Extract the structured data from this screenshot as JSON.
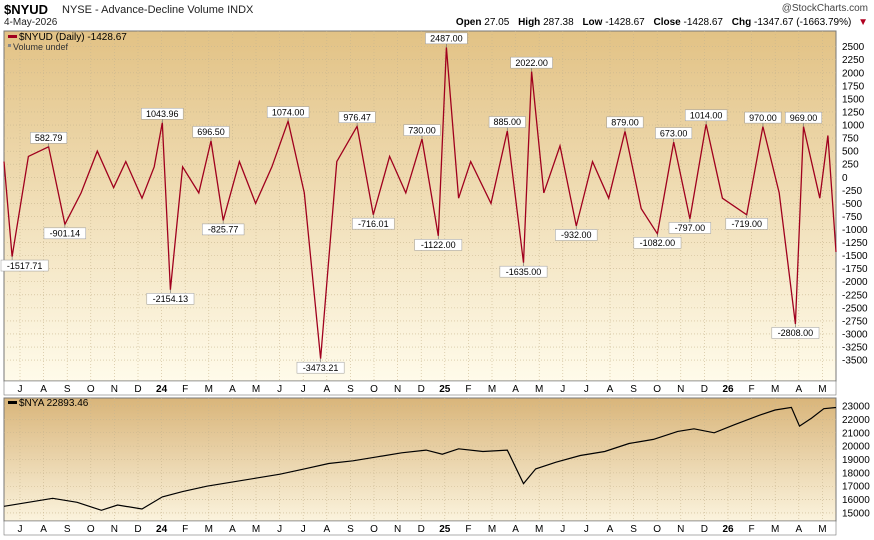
{
  "header": {
    "symbol": "$NYUD",
    "description": "NYSE - Advance-Decline Volume  INDX",
    "date": "4-May-2026",
    "brand": "@StockCharts.com",
    "open_label": "Open",
    "open_value": "27.05",
    "high_label": "High",
    "high_value": "287.38",
    "low_label": "Low",
    "low_value": "-1428.67",
    "close_label": "Close",
    "close_value": "-1428.67",
    "chg_label": "Chg",
    "chg_value": "-1347.67 (-1663.79%)",
    "chg_icon": "down-triangle-icon"
  },
  "colors": {
    "primary_line": "#a0001e",
    "secondary_line": "#000000"
  },
  "chart_data": [
    {
      "type": "line",
      "legend": "$NYUD (Daily) -1428.67",
      "sublegend": "Volume undef",
      "ylim": [
        -3900,
        2800
      ],
      "yticks": [
        2500,
        2250,
        2000,
        1750,
        1500,
        1250,
        1000,
        750,
        500,
        250,
        0,
        -250,
        -500,
        -750,
        -1000,
        -1250,
        -1500,
        -1750,
        -2000,
        -2250,
        -2500,
        -2750,
        -3000,
        -3250,
        -3500
      ],
      "x_ticks": [
        "J",
        "A",
        "S",
        "O",
        "N",
        "D",
        "24",
        "F",
        "M",
        "A",
        "M",
        "J",
        "J",
        "A",
        "S",
        "O",
        "N",
        "D",
        "25",
        "F",
        "M",
        "A",
        "M",
        "J",
        "J",
        "A",
        "S",
        "O",
        "N",
        "D",
        "26",
        "F",
        "M",
        "A",
        "M"
      ],
      "points": [
        [
          0,
          300
        ],
        [
          2,
          -1517.71
        ],
        [
          6,
          400
        ],
        [
          11,
          582.79
        ],
        [
          15,
          -901.14
        ],
        [
          19,
          -300
        ],
        [
          23,
          500
        ],
        [
          27,
          -200
        ],
        [
          30,
          300
        ],
        [
          34,
          -400
        ],
        [
          37,
          200
        ],
        [
          39,
          1043.96
        ],
        [
          41,
          -2154.13
        ],
        [
          44,
          200
        ],
        [
          48,
          -300
        ],
        [
          51,
          696.5
        ],
        [
          54,
          -825.77
        ],
        [
          58,
          300
        ],
        [
          62,
          -500
        ],
        [
          66,
          200
        ],
        [
          70,
          1074.0
        ],
        [
          74,
          -300
        ],
        [
          78,
          -3473.21
        ],
        [
          82,
          300
        ],
        [
          87,
          976.47
        ],
        [
          91,
          -716.01
        ],
        [
          95,
          400
        ],
        [
          99,
          -300
        ],
        [
          103,
          730.0
        ],
        [
          107,
          -1122.0
        ],
        [
          109,
          2487.0
        ],
        [
          112,
          -400
        ],
        [
          115,
          300
        ],
        [
          120,
          -500
        ],
        [
          124,
          885.0
        ],
        [
          128,
          -1635.0
        ],
        [
          130,
          2022.0
        ],
        [
          133,
          -300
        ],
        [
          137,
          600
        ],
        [
          141,
          -932.0
        ],
        [
          145,
          300
        ],
        [
          149,
          -400
        ],
        [
          153,
          879.0
        ],
        [
          157,
          -600
        ],
        [
          161,
          -1082.0
        ],
        [
          165,
          673.0
        ],
        [
          169,
          -797.0
        ],
        [
          173,
          1014.0
        ],
        [
          177,
          -400
        ],
        [
          183,
          -719.0
        ],
        [
          187,
          970.0
        ],
        [
          191,
          -300
        ],
        [
          195,
          -2808.0
        ],
        [
          197,
          969.0
        ],
        [
          201,
          -400
        ],
        [
          203,
          800
        ],
        [
          205,
          -1428.67
        ]
      ],
      "annotations": [
        "-1517.71",
        "582.79",
        "-901.14",
        "1043.96",
        "-2154.13",
        "696.50",
        "-825.77",
        "1074.00",
        "-3473.21",
        "976.47",
        "-716.01",
        "730.00",
        "-1122.00",
        "2487.00",
        "885.00",
        "-1635.00",
        "2022.00",
        "-932.00",
        "879.00",
        "-1082.00",
        "673.00",
        "-797.00",
        "1014.00",
        "-719.00",
        "970.00",
        "969.00",
        "-2808.00"
      ]
    },
    {
      "type": "line",
      "legend": "$NYA 22893.46",
      "ylim": [
        14400,
        23600
      ],
      "yticks": [
        23000,
        22000,
        21000,
        20000,
        19000,
        18000,
        17000,
        16000,
        15000
      ],
      "x_ticks": [
        "J",
        "A",
        "S",
        "O",
        "N",
        "D",
        "24",
        "F",
        "M",
        "A",
        "M",
        "J",
        "J",
        "A",
        "S",
        "O",
        "N",
        "D",
        "25",
        "F",
        "M",
        "A",
        "M",
        "J",
        "J",
        "A",
        "S",
        "O",
        "N",
        "D",
        "26",
        "F",
        "M",
        "A",
        "M"
      ],
      "points": [
        [
          0,
          15500
        ],
        [
          6,
          15800
        ],
        [
          12,
          16100
        ],
        [
          18,
          15800
        ],
        [
          24,
          15200
        ],
        [
          28,
          15600
        ],
        [
          34,
          15300
        ],
        [
          39,
          16200
        ],
        [
          44,
          16600
        ],
        [
          50,
          17000
        ],
        [
          56,
          17300
        ],
        [
          62,
          17600
        ],
        [
          68,
          17900
        ],
        [
          74,
          18300
        ],
        [
          80,
          18700
        ],
        [
          86,
          18900
        ],
        [
          92,
          19200
        ],
        [
          98,
          19500
        ],
        [
          104,
          19700
        ],
        [
          108,
          19400
        ],
        [
          112,
          19800
        ],
        [
          118,
          19600
        ],
        [
          124,
          19700
        ],
        [
          128,
          17200
        ],
        [
          131,
          18300
        ],
        [
          136,
          18800
        ],
        [
          142,
          19300
        ],
        [
          148,
          19600
        ],
        [
          154,
          20200
        ],
        [
          160,
          20500
        ],
        [
          166,
          21100
        ],
        [
          170,
          21300
        ],
        [
          175,
          21000
        ],
        [
          180,
          21600
        ],
        [
          186,
          22300
        ],
        [
          190,
          22700
        ],
        [
          194,
          22900
        ],
        [
          196,
          21500
        ],
        [
          199,
          22100
        ],
        [
          202,
          22800
        ],
        [
          205,
          22893
        ]
      ]
    }
  ]
}
